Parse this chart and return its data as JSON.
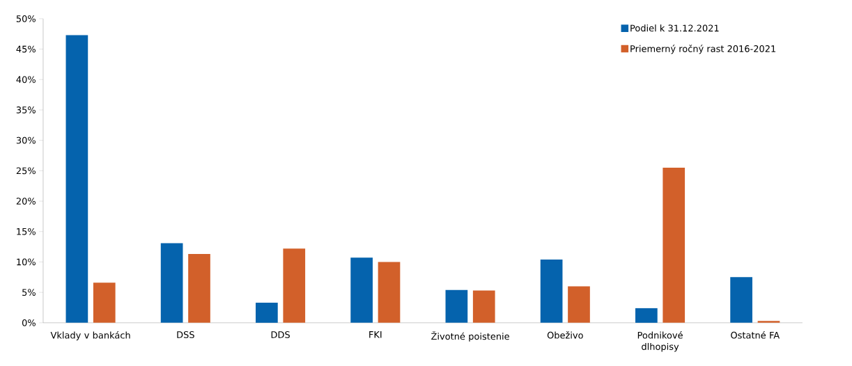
{
  "chart_data": {
    "type": "bar",
    "categories": [
      "Vklady v bankách",
      "DSS",
      "DDS",
      "FKI",
      "Životné poistenie",
      "Obeživo",
      "Podnikové dlhopisy",
      "Ostatné FA"
    ],
    "series": [
      {
        "name": "Podiel k 31.12.2021",
        "color": "#0563ad",
        "values": [
          47.3,
          13.1,
          3.3,
          10.7,
          5.4,
          10.4,
          2.4,
          7.5
        ]
      },
      {
        "name": "Priemerný ročný rast 2016-2021",
        "color": "#d2602a",
        "values": [
          6.6,
          11.3,
          12.2,
          10.0,
          5.3,
          6.0,
          25.5,
          0.3
        ]
      }
    ],
    "ylim": [
      0,
      50
    ],
    "yticks": [
      {
        "value": 0,
        "label": "0%"
      },
      {
        "value": 5,
        "label": "5%"
      },
      {
        "value": 10,
        "label": "10%"
      },
      {
        "value": 15,
        "label": "15%"
      },
      {
        "value": 20,
        "label": "20%"
      },
      {
        "value": 25,
        "label": "25%"
      },
      {
        "value": 30,
        "label": "30%"
      },
      {
        "value": 35,
        "label": "35%"
      },
      {
        "value": 40,
        "label": "40%"
      },
      {
        "value": 45,
        "label": "45%"
      },
      {
        "value": 50,
        "label": "50%"
      }
    ],
    "grid": false,
    "legend": "top right"
  }
}
